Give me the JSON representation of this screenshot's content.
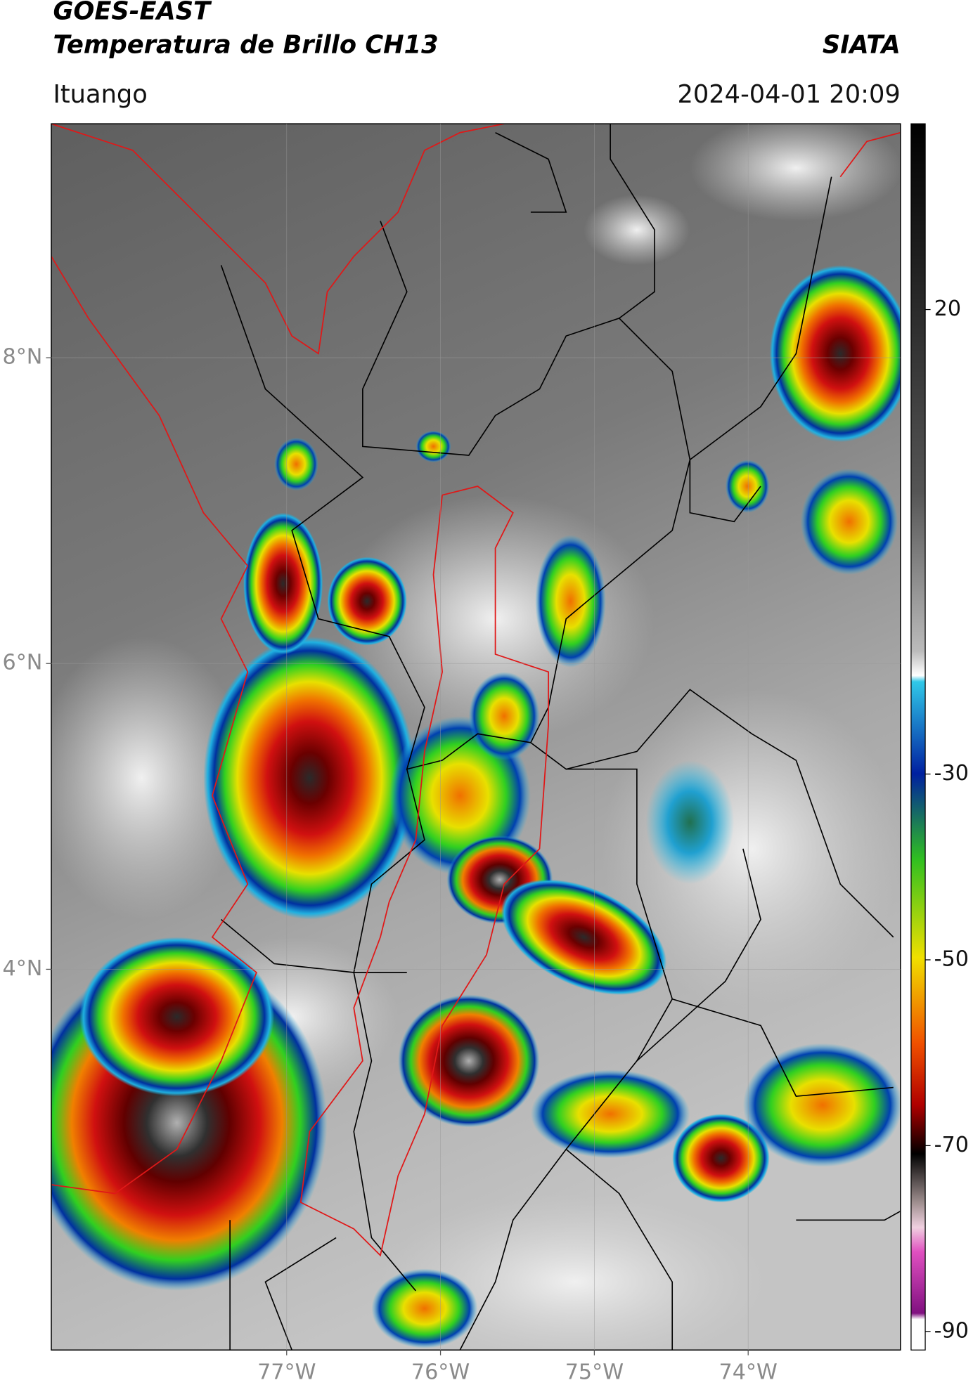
{
  "header": {
    "satellite": "GOES-EAST",
    "product": "Temperatura de Brillo CH13",
    "org": "SIATA",
    "location": "Ituango",
    "datetime": "2024-04-01 20:09"
  },
  "map": {
    "lonlim": [
      -78.53,
      -73.01
    ],
    "latlim": [
      1.51,
      9.53
    ],
    "lon_ticks": [
      {
        "value": -77,
        "label": "77°W"
      },
      {
        "value": -76,
        "label": "76°W"
      },
      {
        "value": -75,
        "label": "75°W"
      },
      {
        "value": -74,
        "label": "74°W"
      }
    ],
    "lat_ticks": [
      {
        "value": 8,
        "label": "8°N"
      },
      {
        "value": 6,
        "label": "6°N"
      },
      {
        "value": 4,
        "label": "4°N"
      }
    ],
    "grid": true
  },
  "colorbar": {
    "lim": [
      -92,
      40
    ],
    "ticks": [
      20,
      -30,
      -50,
      -70,
      -90
    ]
  }
}
